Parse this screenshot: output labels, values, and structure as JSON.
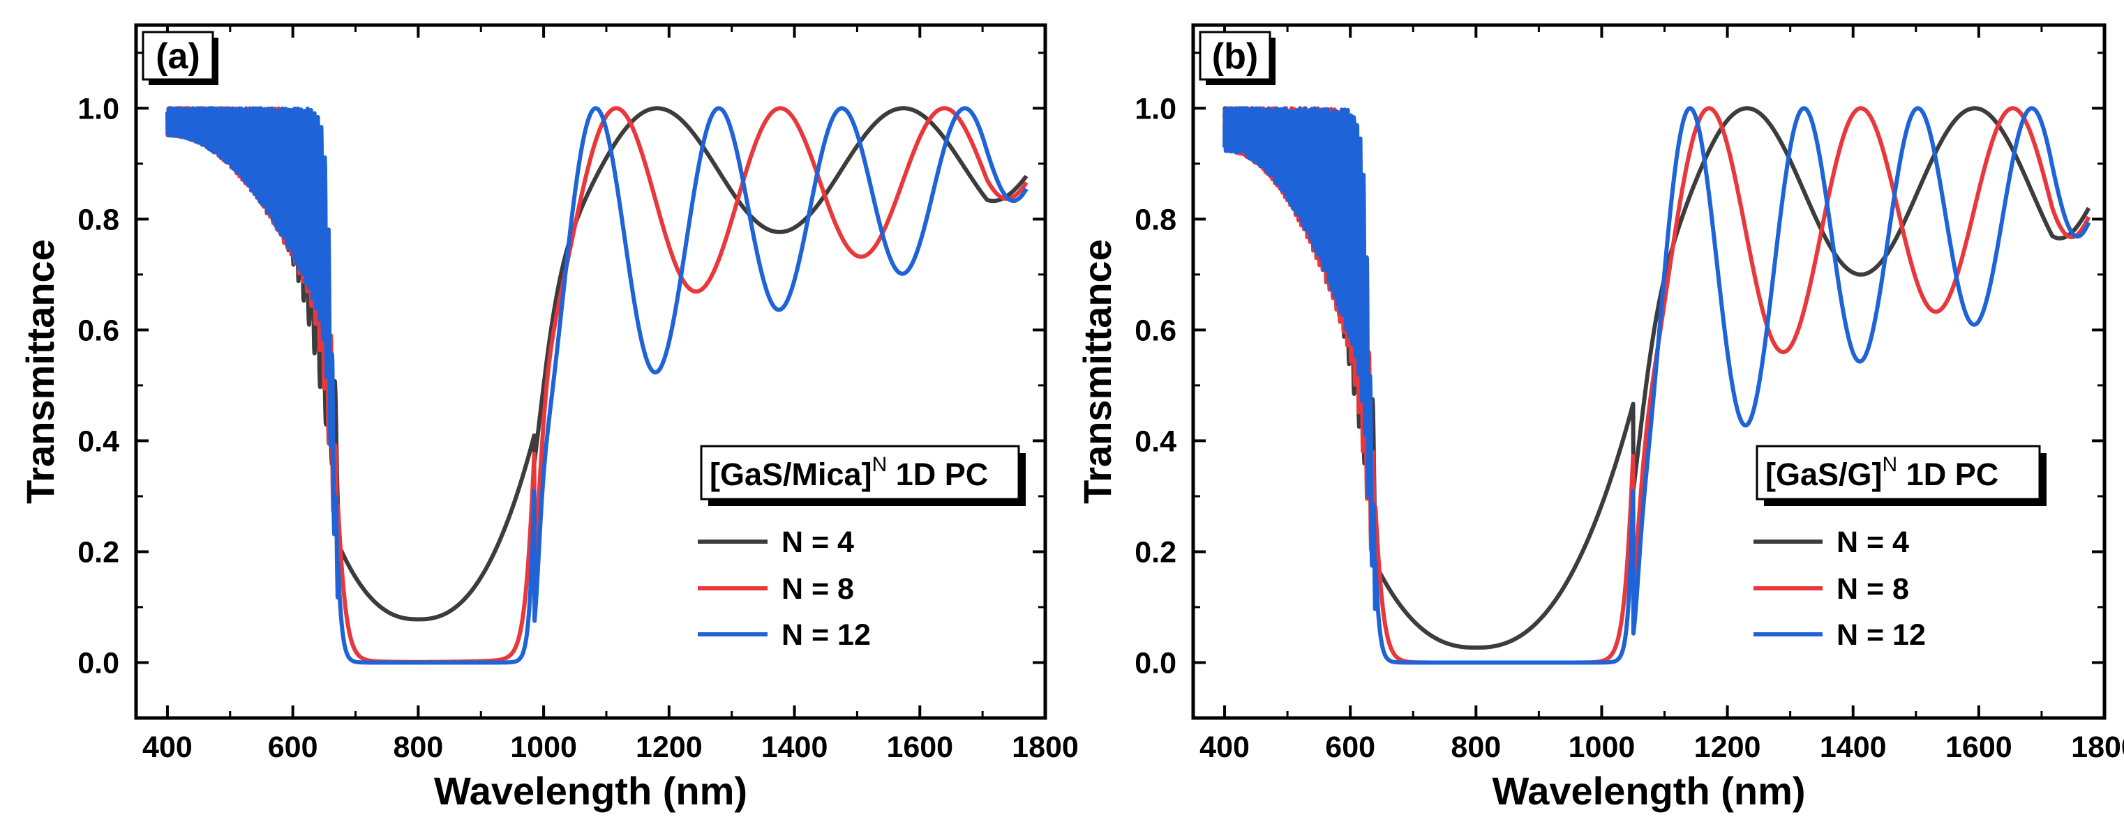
{
  "chart_data": [
    {
      "type": "line",
      "panel_label": "(a)",
      "xlabel": "Wavelength (nm)",
      "ylabel": "Transmittance",
      "xlim": [
        350,
        1800
      ],
      "ylim": [
        -0.1,
        1.15
      ],
      "xticks": [
        400,
        600,
        800,
        1000,
        1200,
        1400,
        1600,
        1800
      ],
      "xtick_labels": [
        "400",
        "600",
        "800",
        "1000",
        "1200",
        "1400",
        "1600",
        "1800"
      ],
      "yticks": [
        0.0,
        0.2,
        0.4,
        0.6,
        0.8,
        1.0
      ],
      "ytick_labels": [
        "0.0",
        "0.2",
        "0.4",
        "0.6",
        "0.8",
        "1.0"
      ],
      "legend": {
        "title_main": "[GaS/Mica]",
        "title_sup": "N",
        "title_suffix": " 1D PC",
        "placement": "lower-right"
      },
      "model": {
        "lo_edge": 672,
        "hi_edge": 985,
        "center": 800,
        "x_start": 400,
        "x_end": 1770,
        "baseline": 0.93,
        "long_end": 0.97,
        "long_end_wl": 1770,
        "long_env_min": 0.79,
        "long_env_center": 1420
      },
      "series": [
        {
          "name": "N = 4",
          "label": "N = 4",
          "N": 4,
          "color": "#3c3c3c",
          "center_min": 0.078,
          "short_dip": 0.6,
          "long_dip": 0.75,
          "long_osc": 2.0,
          "short_osc": 13,
          "edge_sharp": 1.0
        },
        {
          "name": "N = 8",
          "label": "N = 8",
          "N": 8,
          "color": "#e8383c",
          "center_min": 0.001,
          "short_dip": 0.54,
          "long_dip": 0.54,
          "long_osc": 3.0,
          "short_osc": 17,
          "edge_sharp": 2.4
        },
        {
          "name": "N = 12",
          "label": "N = 12",
          "N": 12,
          "color": "#1f63d8",
          "center_min": 0.0,
          "short_dip": 0.55,
          "long_dip": 0.33,
          "long_osc": 4.0,
          "short_osc": 21,
          "edge_sharp": 4.0
        }
      ]
    },
    {
      "type": "line",
      "panel_label": "(b)",
      "xlabel": "Wavelength (nm)",
      "ylabel": "Transmittance",
      "xlim": [
        350,
        1800
      ],
      "ylim": [
        -0.1,
        1.15
      ],
      "xticks": [
        400,
        600,
        800,
        1000,
        1200,
        1400,
        1600,
        1800
      ],
      "xtick_labels": [
        "400",
        "600",
        "800",
        "1000",
        "1200",
        "1400",
        "1600",
        "1800"
      ],
      "yticks": [
        0.0,
        0.2,
        0.4,
        0.6,
        0.8,
        1.0
      ],
      "ytick_labels": [
        "0.0",
        "0.2",
        "0.4",
        "0.6",
        "0.8",
        "1.0"
      ],
      "legend": {
        "title_main": "[GaS/G]",
        "title_sup": "N",
        "title_suffix": " 1D PC",
        "placement": "lower-right"
      },
      "model": {
        "lo_edge": 640,
        "hi_edge": 1050,
        "center": 800,
        "x_start": 400,
        "x_end": 1775,
        "baseline": 0.89,
        "long_end": 0.94,
        "long_end_wl": 1775,
        "long_env_min": 0.7,
        "long_env_center": 1460
      },
      "series": [
        {
          "name": "N = 4",
          "label": "N = 4",
          "N": 4,
          "color": "#3c3c3c",
          "center_min": 0.027,
          "short_dip": 0.55,
          "long_dip": 0.7,
          "long_osc": 2.0,
          "short_osc": 13,
          "edge_sharp": 1.0
        },
        {
          "name": "N = 8",
          "label": "N = 8",
          "N": 8,
          "color": "#e8383c",
          "center_min": 0.0,
          "short_dip": 0.42,
          "long_dip": 0.41,
          "long_osc": 3.0,
          "short_osc": 17,
          "edge_sharp": 2.4
        },
        {
          "name": "N = 12",
          "label": "N = 12",
          "N": 12,
          "color": "#1f63d8",
          "center_min": 0.0,
          "short_dip": 0.45,
          "long_dip": 0.23,
          "long_osc": 4.0,
          "short_osc": 21,
          "edge_sharp": 4.0
        }
      ]
    }
  ]
}
